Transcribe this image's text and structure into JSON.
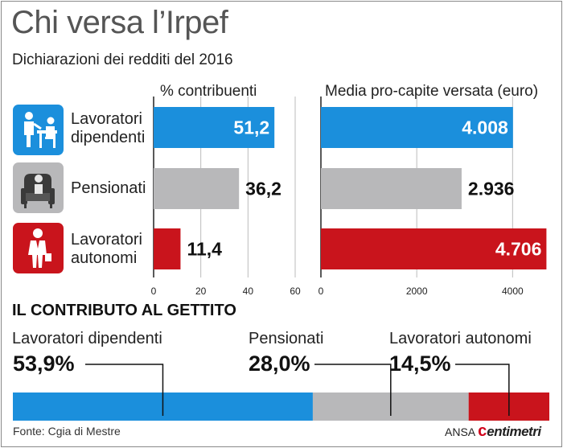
{
  "title": "Chi versa l’Irpef",
  "subtitle": "Dichiarazioni dei redditi del 2016",
  "colors": {
    "dipendenti": "#1b8fdc",
    "pensionati": "#b8b8ba",
    "autonomi": "#c9141c"
  },
  "icons": {
    "dipendenti": "office-worker-icon",
    "pensionati": "retiree-armchair-icon",
    "autonomi": "businessman-icon"
  },
  "rows": [
    {
      "label": "Lavoratori dipendenti",
      "line1": "Lavoratori",
      "line2": "dipendenti"
    },
    {
      "label": "Pensionati",
      "line1": "Pensionati",
      "line2": ""
    },
    {
      "label": "Lavoratori autonomi",
      "line1": "Lavoratori",
      "line2": "autonomi"
    }
  ],
  "chart_data": [
    {
      "type": "bar",
      "orientation": "horizontal",
      "title": "% contribuenti",
      "categories": [
        "Lavoratori dipendenti",
        "Pensionati",
        "Lavoratori autonomi"
      ],
      "values": [
        51.2,
        36.2,
        11.4
      ],
      "value_labels": [
        "51,2",
        "36,2",
        "11,4"
      ],
      "xlim": [
        0,
        60
      ],
      "ticks": [
        0,
        20,
        40,
        60
      ],
      "tick_labels": [
        "0",
        "20",
        "40",
        "60"
      ],
      "grid": true
    },
    {
      "type": "bar",
      "orientation": "horizontal",
      "title": "Media pro-capite versata (euro)",
      "categories": [
        "Lavoratori dipendenti",
        "Pensionati",
        "Lavoratori autonomi"
      ],
      "values": [
        4008,
        2936,
        4706
      ],
      "value_labels": [
        "4.008",
        "2.936",
        "4.706"
      ],
      "xlim": [
        0,
        4800
      ],
      "ticks": [
        0,
        2000,
        4000
      ],
      "tick_labels": [
        "0",
        "2000",
        "4000"
      ],
      "grid": true
    },
    {
      "type": "bar",
      "orientation": "stacked-horizontal",
      "title": "IL CONTRIBUTO AL GETTITO",
      "categories": [
        "Lavoratori dipendenti",
        "Pensionati",
        "Lavoratori autonomi"
      ],
      "values": [
        53.9,
        28.0,
        14.5
      ],
      "value_labels": [
        "53,9%",
        "28,0%",
        "14,5%"
      ]
    }
  ],
  "footer": {
    "source": "Fonte: Cgia di Mestre",
    "credit_prefix": "ANSA",
    "credit_c": "c",
    "credit_rest": "entimetri"
  }
}
